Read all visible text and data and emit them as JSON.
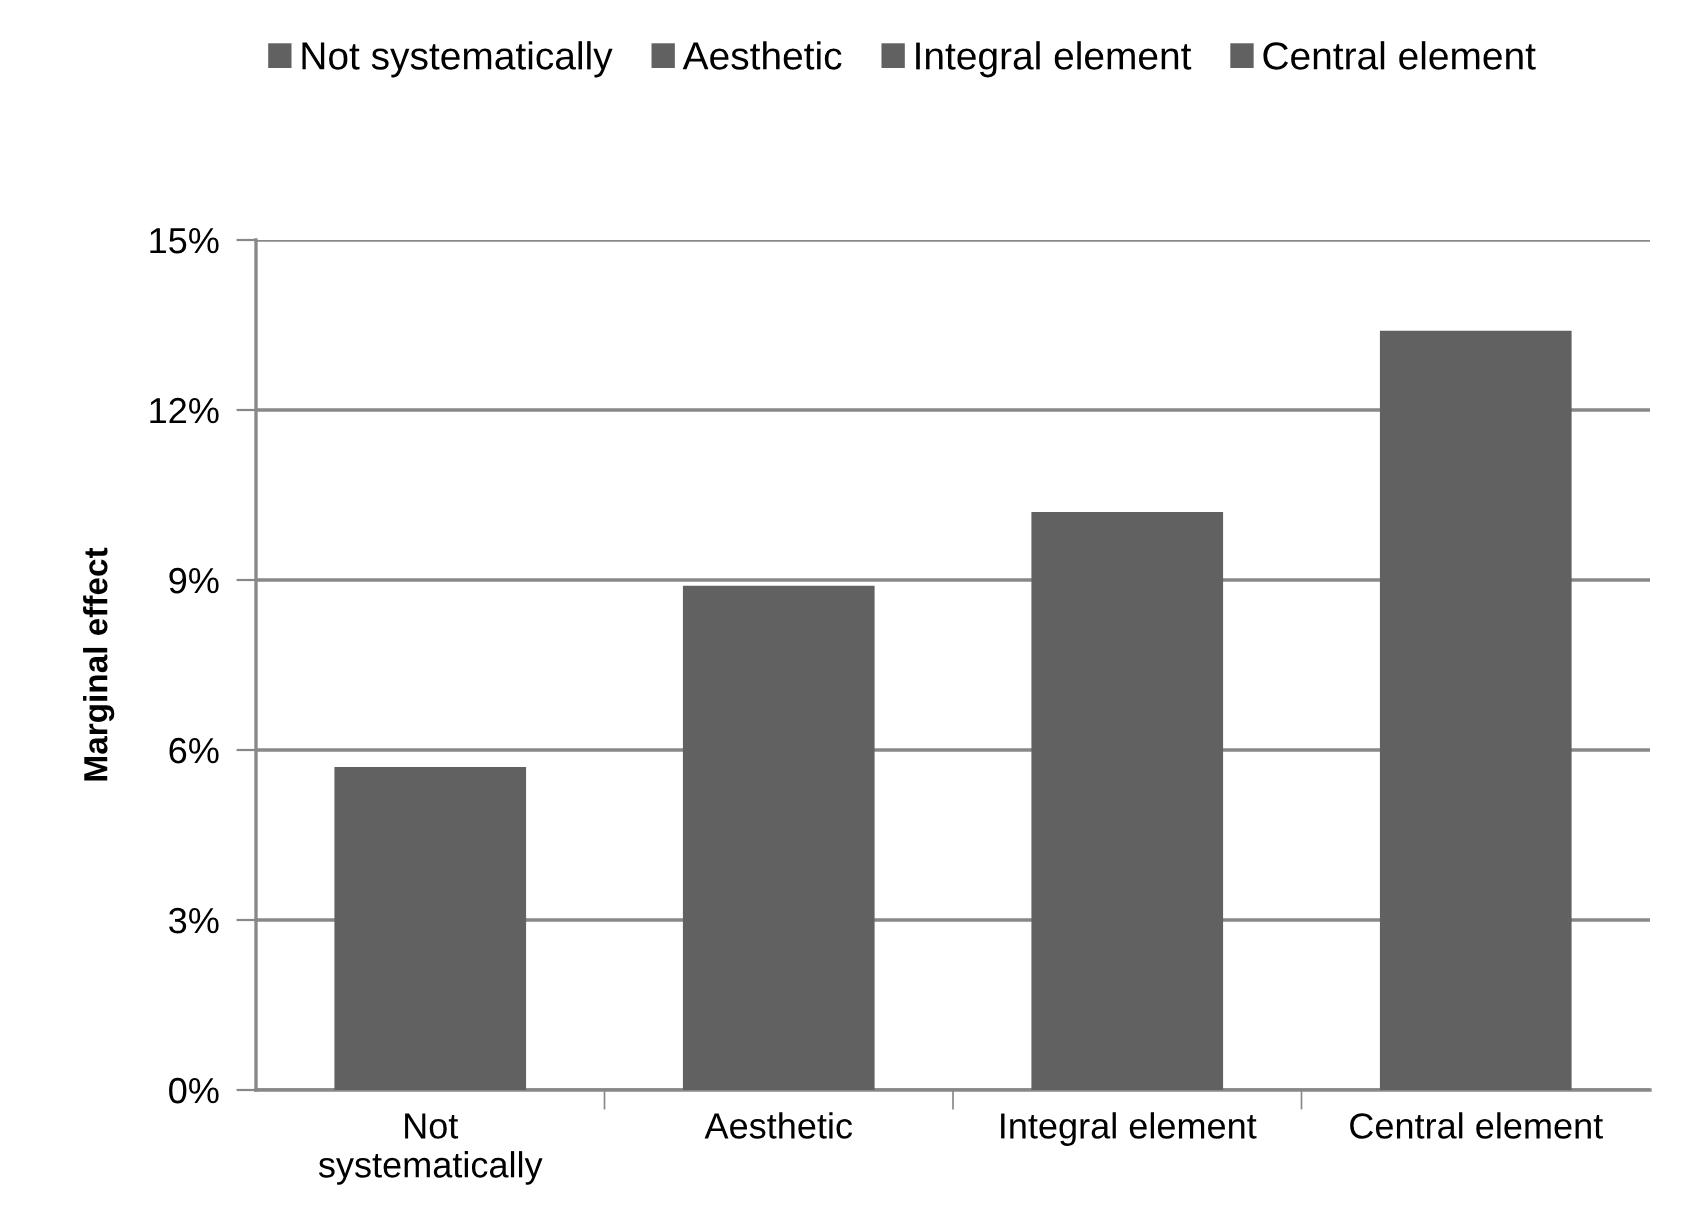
{
  "chart_data": {
    "type": "bar",
    "ylabel": "Marginal effect",
    "categories": [
      "Not\nsystematically",
      "Aesthetic",
      "Integral element",
      "Central element"
    ],
    "series": [
      {
        "name": "Not systematically",
        "color": "#616161",
        "values": [
          5.7,
          null,
          null,
          null
        ]
      },
      {
        "name": "Aesthetic",
        "color": "#616161",
        "values": [
          null,
          8.9,
          null,
          null
        ]
      },
      {
        "name": "Integral element",
        "color": "#616161",
        "values": [
          null,
          null,
          10.2,
          null
        ]
      },
      {
        "name": "Central element",
        "color": "#616161",
        "values": [
          null,
          null,
          null,
          13.4
        ]
      }
    ],
    "ylim": [
      0,
      15
    ],
    "yticks": [
      {
        "value": 0,
        "label": "0%"
      },
      {
        "value": 3,
        "label": "3%"
      },
      {
        "value": 6,
        "label": "6%"
      },
      {
        "value": 9,
        "label": "9%"
      },
      {
        "value": 12,
        "label": "12%"
      },
      {
        "value": 15,
        "label": "15%"
      }
    ],
    "grid": "y",
    "legend": "top"
  }
}
